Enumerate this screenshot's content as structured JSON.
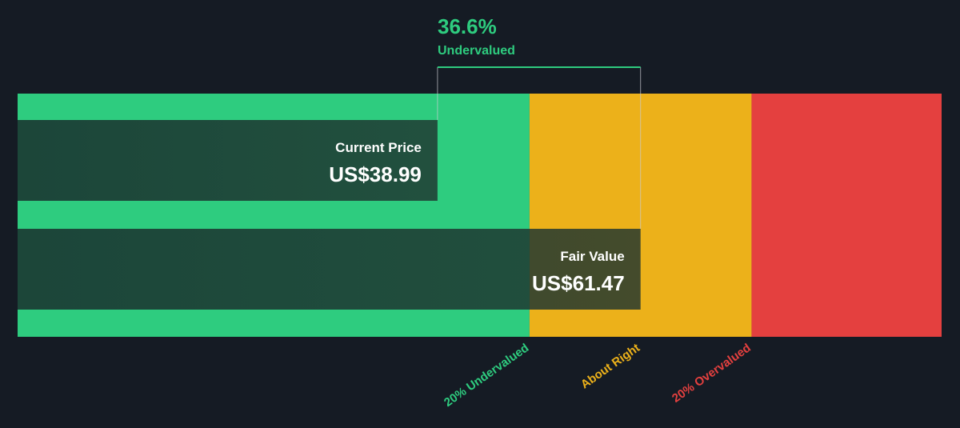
{
  "chart_data": {
    "type": "valuation",
    "title": "36.6%",
    "subtitle": "Undervalued",
    "categories": [
      "Current Price",
      "Fair Value"
    ],
    "values": [
      38.99,
      61.47
    ],
    "value_labels": [
      "US$38.99",
      "US$61.47"
    ],
    "xlim": [
      -7.5,
      94.8
    ],
    "zones": [
      {
        "name": "20% Undervalued",
        "color": "#2ecc7f",
        "start": -7.5,
        "end": 49.18
      },
      {
        "name": "About Right",
        "color": "#ecb11a",
        "start": 49.18,
        "end": 73.76
      },
      {
        "name": "20% Overvalued",
        "color": "#e4403f",
        "start": 73.76,
        "end": 94.8
      }
    ]
  }
}
